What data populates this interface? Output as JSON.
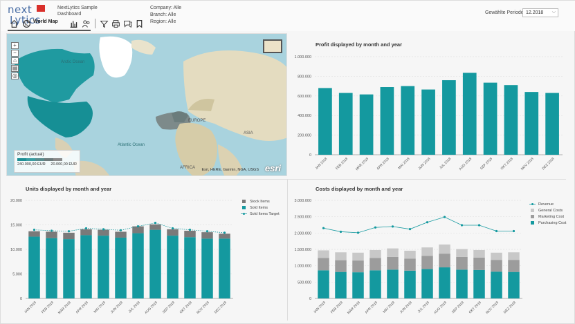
{
  "header": {
    "logo_line1": "next",
    "logo_line2": "Lytics",
    "app_title": "NextLytics Sample Dashboard",
    "company": "Company: Alle",
    "branch": "Branch: Alle",
    "region": "Region: Alle",
    "period_label": "Gewählte Periode:",
    "period_value": "12.2018"
  },
  "toolbar": {
    "tab_label": "World Map",
    "icons": [
      "home-icon",
      "globe-icon",
      "bar-chart-icon",
      "users-icon",
      "filter-icon",
      "print-icon",
      "comment-icon",
      "bookmark-icon"
    ]
  },
  "map": {
    "labels": {
      "arctic_ocean": "Arctic Ocean",
      "atlantic_ocean": "Atlantic Ocean",
      "europe": "EUROPE",
      "asia": "ASIA",
      "africa": "AFRICA"
    },
    "controls": [
      "+",
      "−",
      "⌂",
      "▤",
      "◎"
    ],
    "legend_title": "Profit (actual)",
    "legend_min": "240.000,00 EUR",
    "legend_max": "20.000,00 EUR",
    "legend_colors": [
      "#1f8f95",
      "#3c9ea3",
      "#5a8d8f",
      "#6e7b7c",
      "#8a8a8a"
    ],
    "attribution": "Esri, HERE, Garmin, NGA, USGS",
    "esri_logo": "esri"
  },
  "colors": {
    "teal": "#14999f",
    "gray_dark": "#7a7a7a",
    "gray_light": "#c8c8c8",
    "gray_mid": "#9c9c9c"
  },
  "chart_data": [
    {
      "id": "profit",
      "type": "bar",
      "title": "Profit displayed by month and year",
      "categories": [
        "JAN 2018",
        "FEB 2018",
        "MÄR 2018",
        "APR 2018",
        "MAI 2018",
        "JUN 2018",
        "JUL 2018",
        "AUG 2018",
        "SEP 2018",
        "OKT 2018",
        "NOV 2018",
        "DEZ 2018"
      ],
      "values": [
        680000,
        630000,
        615000,
        690000,
        700000,
        665000,
        760000,
        835000,
        735000,
        710000,
        640000,
        630000
      ],
      "ylim": [
        0,
        1000000
      ],
      "yticks": [
        "0",
        "200.000",
        "400.000",
        "600.000",
        "800.000",
        "1.000.000"
      ],
      "grid": true
    },
    {
      "id": "units",
      "type": "bar",
      "title": "Units displayed by month and year",
      "categories": [
        "JAN 2018",
        "FEB 2018",
        "MÄR 2018",
        "APR 2018",
        "MAI 2018",
        "JUN 2018",
        "JUL 2018",
        "AUG 2018",
        "SEP 2018",
        "OKT 2018",
        "NOV 2018",
        "DEZ 2018"
      ],
      "series": [
        {
          "name": "Sold Items",
          "values": [
            12600,
            12300,
            12100,
            12900,
            12800,
            12400,
            13300,
            14000,
            12800,
            12500,
            12200,
            12200
          ]
        },
        {
          "name": "Stock Items",
          "values": [
            1100,
            1300,
            1300,
            1200,
            1200,
            1200,
            1400,
            1100,
            1300,
            1300,
            1300,
            1000
          ]
        },
        {
          "name": "Sold Items Target",
          "type": "line",
          "values": [
            14000,
            13800,
            13700,
            14300,
            14100,
            13900,
            14700,
            15400,
            14300,
            14000,
            13700,
            13400
          ]
        }
      ],
      "legend": [
        "Stock Items",
        "Sold Items",
        "Sold Items Target"
      ],
      "legend_position": "top-right",
      "ylim": [
        0,
        20000
      ],
      "yticks": [
        "0",
        "5.000",
        "10.000",
        "15.000",
        "20.000"
      ],
      "grid": true
    },
    {
      "id": "costs",
      "type": "bar",
      "title": "Costs displayed by month and year",
      "categories": [
        "JAN 2018",
        "FEB 2018",
        "MÄR 2018",
        "APR 2018",
        "MAI 2018",
        "JUN 2018",
        "JUL 2018",
        "AUG 2018",
        "SEP 2018",
        "OKT 2018",
        "NOV 2018",
        "DEZ 2018"
      ],
      "series": [
        {
          "name": "Purchasing Cost",
          "values": [
            860000,
            810000,
            800000,
            860000,
            880000,
            850000,
            900000,
            950000,
            880000,
            870000,
            820000,
            810000
          ]
        },
        {
          "name": "Marketing Cost",
          "values": [
            380000,
            360000,
            360000,
            380000,
            390000,
            370000,
            400000,
            420000,
            390000,
            380000,
            360000,
            370000
          ]
        },
        {
          "name": "General Costs",
          "values": [
            230000,
            240000,
            240000,
            240000,
            260000,
            240000,
            260000,
            280000,
            240000,
            230000,
            220000,
            230000
          ]
        },
        {
          "name": "Revenue",
          "type": "line",
          "values": [
            2150000,
            2040000,
            2010000,
            2170000,
            2200000,
            2120000,
            2330000,
            2490000,
            2240000,
            2240000,
            2060000,
            2060000
          ]
        }
      ],
      "legend": [
        "Revenue",
        "General Costs",
        "Marketing Cost",
        "Purchasing Cost"
      ],
      "legend_position": "top-right",
      "ylim": [
        0,
        3000000
      ],
      "yticks": [
        "0",
        "500.000",
        "1.000.000",
        "1.500.000",
        "2.000.000",
        "2.500.000",
        "3.000.000"
      ],
      "grid": true
    }
  ]
}
